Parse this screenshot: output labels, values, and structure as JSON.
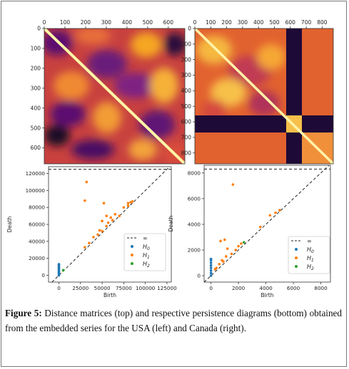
{
  "figure": {
    "label": "Figure 5:",
    "text": "Distance matrices (top) and respective persistence diagrams (bottom) obtained from the embedded series for the USA (left) and Canada (right)."
  },
  "chart_data": [
    {
      "type": "heatmap",
      "panel": "top-left",
      "xticks": [
        "0",
        "100",
        "200",
        "300",
        "400",
        "500",
        "600"
      ],
      "yticks": [
        "0",
        "100",
        "200",
        "300",
        "400",
        "500",
        "600"
      ],
      "xlim": [
        0,
        680
      ],
      "ylim": [
        0,
        680
      ],
      "colormap": "inferno"
    },
    {
      "type": "heatmap",
      "panel": "top-right",
      "xticks": [
        "0",
        "100",
        "200",
        "300",
        "400",
        "500",
        "600",
        "700",
        "800"
      ],
      "yticks": [
        "0",
        "100",
        "200",
        "300",
        "400",
        "500",
        "600",
        "700",
        "800"
      ],
      "xlim": [
        0,
        870
      ],
      "ylim": [
        0,
        870
      ],
      "colormap": "inferno"
    },
    {
      "type": "scatter",
      "panel": "bottom-left",
      "xlabel": "Birth",
      "ylabel": "Death",
      "xticks": [
        "0",
        "25000",
        "50000",
        "75000",
        "100000",
        "125000"
      ],
      "yticks": [
        "0",
        "20000",
        "40000",
        "60000",
        "80000",
        "100000",
        "120000"
      ],
      "xlim": [
        -12000,
        130000
      ],
      "ylim": [
        -8000,
        128000
      ],
      "infinity_level": 125000,
      "legend": [
        "∞",
        "H0",
        "H1",
        "H2"
      ],
      "legend_placement": "bottom-right",
      "series": [
        {
          "name": "H0",
          "color": "#1f77b4",
          "points": [
            [
              0,
              0
            ],
            [
              0,
              1500
            ],
            [
              0,
              3000
            ],
            [
              0,
              4500
            ],
            [
              0,
              6000
            ],
            [
              0,
              7500
            ],
            [
              0,
              9000
            ],
            [
              0,
              10500
            ],
            [
              0,
              12000
            ],
            [
              0,
              13000
            ]
          ]
        },
        {
          "name": "H1",
          "color": "#ff7f0e",
          "points": [
            [
              32000,
              110000
            ],
            [
              30000,
              88000
            ],
            [
              40000,
              45000
            ],
            [
              47000,
              53000
            ],
            [
              50000,
              64000
            ],
            [
              52000,
              85000
            ],
            [
              55000,
              70000
            ],
            [
              55000,
              58000
            ],
            [
              60000,
              68000
            ],
            [
              65000,
              72000
            ],
            [
              70000,
              70000
            ],
            [
              75000,
              80000
            ],
            [
              80000,
              85000
            ],
            [
              83000,
              86000
            ],
            [
              85000,
              87000
            ],
            [
              57000,
              62000
            ],
            [
              62000,
              65000
            ],
            [
              50000,
              52000
            ],
            [
              45000,
              48000
            ],
            [
              30000,
              33000
            ],
            [
              35000,
              38000
            ],
            [
              80000,
              82000
            ]
          ]
        },
        {
          "name": "H2",
          "color": "#2ca02c",
          "points": [
            [
              5000,
              6000
            ]
          ]
        }
      ]
    },
    {
      "type": "scatter",
      "panel": "bottom-right",
      "xlabel": "Birth",
      "ylabel": "Death",
      "xticks": [
        "0",
        "2000",
        "4000",
        "6000",
        "8000"
      ],
      "yticks": [
        "0",
        "2000",
        "4000",
        "6000",
        "8000"
      ],
      "xlim": [
        -500,
        8700
      ],
      "ylim": [
        -500,
        8600
      ],
      "infinity_level": 8300,
      "legend": [
        "∞",
        "H0",
        "H1",
        "H2"
      ],
      "legend_placement": "bottom-right",
      "series": [
        {
          "name": "H0",
          "color": "#1f77b4",
          "points": [
            [
              0,
              0
            ],
            [
              0,
              200
            ],
            [
              0,
              400
            ],
            [
              0,
              600
            ],
            [
              0,
              800
            ],
            [
              0,
              1000
            ],
            [
              0,
              1200
            ],
            [
              0,
              1300
            ]
          ]
        },
        {
          "name": "H1",
          "color": "#ff7f0e",
          "points": [
            [
              1600,
              7100
            ],
            [
              1000,
              2800
            ],
            [
              700,
              2700
            ],
            [
              1200,
              2100
            ],
            [
              400,
              600
            ],
            [
              600,
              900
            ],
            [
              800,
              1200
            ],
            [
              1500,
              1700
            ],
            [
              2000,
              2300
            ],
            [
              2200,
              2500
            ],
            [
              3600,
              3800
            ],
            [
              4300,
              4700
            ],
            [
              4700,
              4900
            ],
            [
              5000,
              5100
            ],
            [
              900,
              1100
            ],
            [
              300,
              500
            ],
            [
              1100,
              1500
            ],
            [
              1800,
              2000
            ]
          ]
        },
        {
          "name": "H2",
          "color": "#2ca02c",
          "points": [
            [
              2400,
              2600
            ]
          ]
        }
      ]
    }
  ]
}
